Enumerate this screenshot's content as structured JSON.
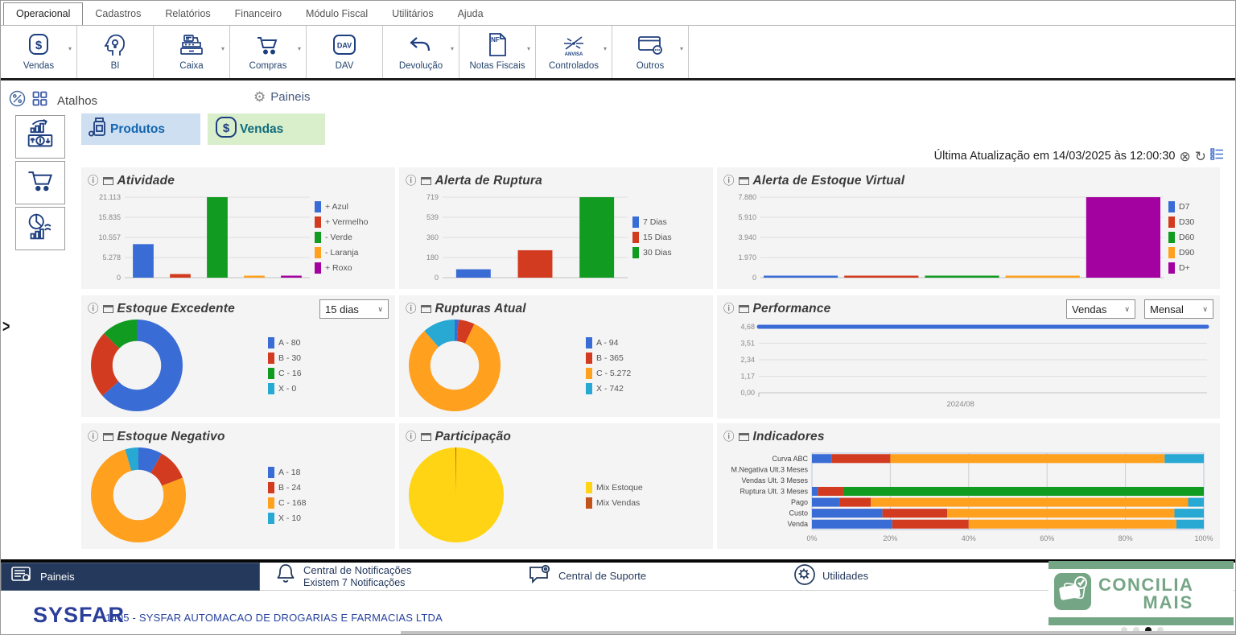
{
  "menu": {
    "tabs": [
      {
        "label": "Operacional",
        "active": true
      },
      {
        "label": "Cadastros"
      },
      {
        "label": "Relatórios"
      },
      {
        "label": "Financeiro"
      },
      {
        "label": "Módulo Fiscal"
      },
      {
        "label": "Utilitários"
      },
      {
        "label": "Ajuda"
      }
    ]
  },
  "toolbar": {
    "items": [
      {
        "label": "Vendas",
        "icon": "dollar-badge",
        "dropdown": true
      },
      {
        "label": "BI",
        "icon": "bi-head",
        "dropdown": false
      },
      {
        "label": "Caixa",
        "icon": "cash-register",
        "dropdown": true
      },
      {
        "label": "Compras",
        "icon": "shopping-cart",
        "dropdown": true
      },
      {
        "label": "DAV",
        "icon": "dav-badge",
        "dropdown": false
      },
      {
        "label": "Devolução",
        "icon": "return-arrow",
        "dropdown": true
      },
      {
        "label": "Notas Fiscais",
        "icon": "nf-document",
        "dropdown": true
      },
      {
        "label": "Controlados",
        "icon": "anvisa",
        "dropdown": true
      },
      {
        "label": "Outros",
        "icon": "card-ellipsis",
        "dropdown": true
      }
    ]
  },
  "shortcut_bar": {
    "atalhos": "Atalhos",
    "paineis": "Paineis"
  },
  "shortcuts": [
    {
      "label": "Produtos",
      "bg": "#cddff0",
      "color": "#1565ae"
    },
    {
      "label": "Vendas",
      "bg": "#d9eecb",
      "color": "#106c7d"
    }
  ],
  "status": {
    "last_update": "Última Atualização em 14/03/2025 às 12:00:30"
  },
  "dropdowns": {
    "estoque_excedente": "15 dias",
    "performance_tipo": "Vendas",
    "performance_periodo": "Mensal"
  },
  "palette": {
    "blue": "#3A6CD6",
    "red": "#D23B20",
    "green": "#119B21",
    "orange": "#FFA01E",
    "purple": "#A301A0",
    "cyan": "#27A9D3",
    "yellow": "#FFD414",
    "rust": "#C2531B"
  },
  "icons": {
    "info": "ⓘ",
    "gear": "⚙",
    "close_circle": "⊗",
    "refresh": "↻",
    "caret": "▾",
    "dd_arrow": "∨",
    "chevron": ">"
  },
  "chart_data": [
    {
      "type": "bar",
      "title": "Atividade",
      "ymax": 21113,
      "yticks": [
        "21.113",
        "15.835",
        "10.557",
        "5.278",
        "0"
      ],
      "items": [
        {
          "label": "+ Azul",
          "value": 8800,
          "color": "blue"
        },
        {
          "label": "+ Vermelho",
          "value": 950,
          "color": "red"
        },
        {
          "label": "- Verde",
          "value": 21113,
          "color": "green"
        },
        {
          "label": "- Laranja",
          "value": 180,
          "color": "orange"
        },
        {
          "label": "+ Roxo",
          "value": 260,
          "color": "purple"
        }
      ]
    },
    {
      "type": "bar",
      "title": "Alerta de Ruptura",
      "ymax": 719,
      "yticks": [
        "719",
        "539",
        "360",
        "180",
        "0"
      ],
      "items": [
        {
          "label": "7 Dias",
          "value": 75,
          "color": "blue"
        },
        {
          "label": "15 Dias",
          "value": 245,
          "color": "red"
        },
        {
          "label": "30 Dias",
          "value": 719,
          "color": "green"
        }
      ]
    },
    {
      "type": "bar",
      "title": "Alerta de Estoque Virtual",
      "ymax": 7880,
      "thin": true,
      "yticks": [
        "7.880",
        "5.910",
        "3.940",
        "1.970",
        "0"
      ],
      "items": [
        {
          "label": "D7",
          "value": 40,
          "color": "blue"
        },
        {
          "label": "D30",
          "value": 55,
          "color": "red"
        },
        {
          "label": "D60",
          "value": 45,
          "color": "green"
        },
        {
          "label": "D90",
          "value": 50,
          "color": "orange"
        },
        {
          "label": "D+",
          "value": 7880,
          "color": "purple"
        }
      ]
    },
    {
      "type": "donut",
      "title": "Estoque Excedente",
      "items": [
        {
          "label": "A - 80",
          "value": 80,
          "color": "blue"
        },
        {
          "label": "B - 30",
          "value": 30,
          "color": "red"
        },
        {
          "label": "C - 16",
          "value": 16,
          "color": "green"
        },
        {
          "label": "X - 0",
          "value": 0,
          "color": "cyan"
        }
      ]
    },
    {
      "type": "donut",
      "title": "Rupturas Atual",
      "items": [
        {
          "label": "A - 94",
          "value": 94,
          "color": "blue"
        },
        {
          "label": "B - 365",
          "value": 365,
          "color": "red"
        },
        {
          "label": "C - 5.272",
          "value": 5272,
          "color": "orange"
        },
        {
          "label": "X - 742",
          "value": 742,
          "color": "cyan"
        }
      ]
    },
    {
      "type": "line",
      "title": "Performance",
      "ymax": 4.68,
      "yticks": [
        "4,68",
        "3,51",
        "2,34",
        "1,17",
        "0,00"
      ],
      "x_labels": [
        "2024/08"
      ],
      "line_value": 4.68,
      "line_color": "blue"
    },
    {
      "type": "donut",
      "title": "Estoque Negativo",
      "items": [
        {
          "label": "A - 18",
          "value": 18,
          "color": "blue"
        },
        {
          "label": "B - 24",
          "value": 24,
          "color": "red"
        },
        {
          "label": "C - 168",
          "value": 168,
          "color": "orange"
        },
        {
          "label": "X - 10",
          "value": 10,
          "color": "cyan"
        }
      ]
    },
    {
      "type": "pie",
      "title": "Participação",
      "items": [
        {
          "label": "Mix Estoque",
          "value": 99.7,
          "color": "yellow"
        },
        {
          "label": "Mix Vendas",
          "value": 0.3,
          "color": "rust"
        }
      ]
    },
    {
      "type": "stacked_bar_h",
      "title": "Indicadores",
      "xticks": [
        "0%",
        "20%",
        "40%",
        "60%",
        "80%",
        "100%"
      ],
      "categories": [
        "Curva ABC",
        "M.Negativa Ult.3 Meses",
        "Vendas Ult. 3 Meses",
        "Ruptura Ult. 3 Meses",
        "Pago",
        "Custo",
        "Venda"
      ],
      "rows": [
        [
          {
            "v": 5,
            "c": "blue"
          },
          {
            "v": 15,
            "c": "red"
          },
          {
            "v": 70,
            "c": "orange"
          },
          {
            "v": 10,
            "c": "cyan"
          }
        ],
        [],
        [],
        [
          {
            "v": 1.5,
            "c": "blue"
          },
          {
            "v": 6.5,
            "c": "red"
          },
          {
            "v": 92,
            "c": "green"
          }
        ],
        [
          {
            "v": 7,
            "c": "blue"
          },
          {
            "v": 8,
            "c": "red"
          },
          {
            "v": 81,
            "c": "orange"
          },
          {
            "v": 4,
            "c": "cyan"
          }
        ],
        [
          {
            "v": 18,
            "c": "blue"
          },
          {
            "v": 16.5,
            "c": "red"
          },
          {
            "v": 58,
            "c": "orange"
          },
          {
            "v": 7.5,
            "c": "cyan"
          }
        ],
        [
          {
            "v": 20.5,
            "c": "blue"
          },
          {
            "v": 19.5,
            "c": "red"
          },
          {
            "v": 53,
            "c": "orange"
          },
          {
            "v": 7,
            "c": "cyan"
          }
        ]
      ]
    }
  ],
  "bottom_nav": {
    "paineis": "Paineis",
    "notifications_title": "Central de Notificações",
    "notifications_sub": "Existem 7 Notificações",
    "suporte": "Central de Suporte",
    "utilidades": "Utilidades"
  },
  "footer": {
    "logo": "SYSFAR",
    "company": "1405 - SYSFAR  AUTOMACAO DE DROGARIAS E FARMACIAS LTDA"
  },
  "banner": {
    "line1": "CONCILIA",
    "line2": "MAIS",
    "color": "#74a584"
  }
}
